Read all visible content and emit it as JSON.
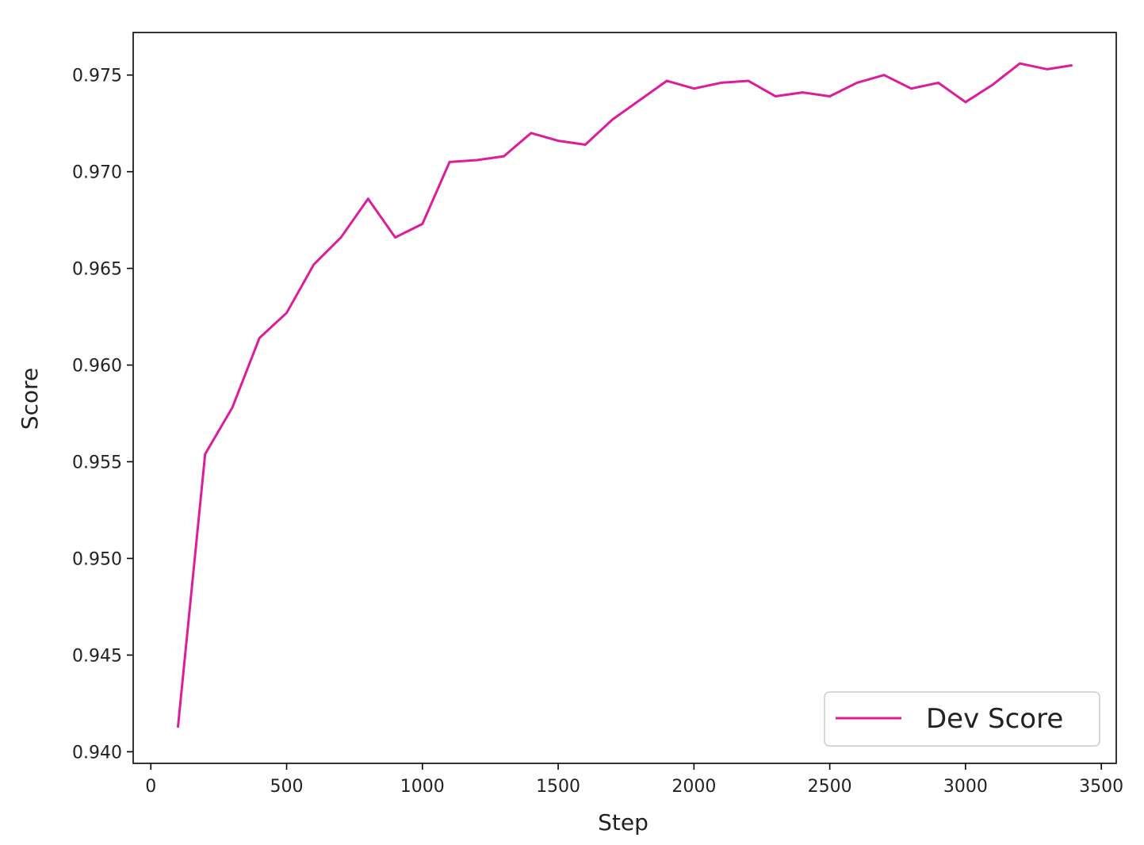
{
  "chart_data": {
    "type": "line",
    "title": "",
    "xlabel": "Step",
    "ylabel": "Score",
    "xlim": [
      -65,
      3555
    ],
    "ylim": [
      0.9394,
      0.9772
    ],
    "xticks": [
      0,
      500,
      1000,
      1500,
      2000,
      2500,
      3000,
      3500
    ],
    "yticks": [
      0.94,
      0.945,
      0.95,
      0.955,
      0.96,
      0.965,
      0.97,
      0.975
    ],
    "xtick_labels": [
      "0",
      "500",
      "1000",
      "1500",
      "2000",
      "2500",
      "3000",
      "3500"
    ],
    "ytick_labels": [
      "0.940",
      "0.945",
      "0.950",
      "0.955",
      "0.960",
      "0.965",
      "0.970",
      "0.975"
    ],
    "grid": false,
    "legend_position": "lower-right",
    "series": [
      {
        "name": "Dev Score",
        "color": "#dd1c9c",
        "x": [
          100,
          200,
          300,
          400,
          500,
          600,
          700,
          800,
          900,
          1000,
          1100,
          1200,
          1300,
          1400,
          1500,
          1600,
          1700,
          1800,
          1900,
          2000,
          2100,
          2200,
          2300,
          2400,
          2500,
          2600,
          2700,
          2800,
          2900,
          3000,
          3100,
          3200,
          3300,
          3390
        ],
        "y": [
          0.9413,
          0.9554,
          0.9578,
          0.9614,
          0.9627,
          0.9652,
          0.9666,
          0.9686,
          0.9666,
          0.9673,
          0.9705,
          0.9706,
          0.9708,
          0.972,
          0.9716,
          0.9714,
          0.9727,
          0.9737,
          0.9747,
          0.9743,
          0.9746,
          0.9747,
          0.9739,
          0.9741,
          0.9739,
          0.9746,
          0.975,
          0.9743,
          0.9746,
          0.9736,
          0.9745,
          0.9756,
          0.9753,
          0.9755
        ]
      }
    ]
  }
}
